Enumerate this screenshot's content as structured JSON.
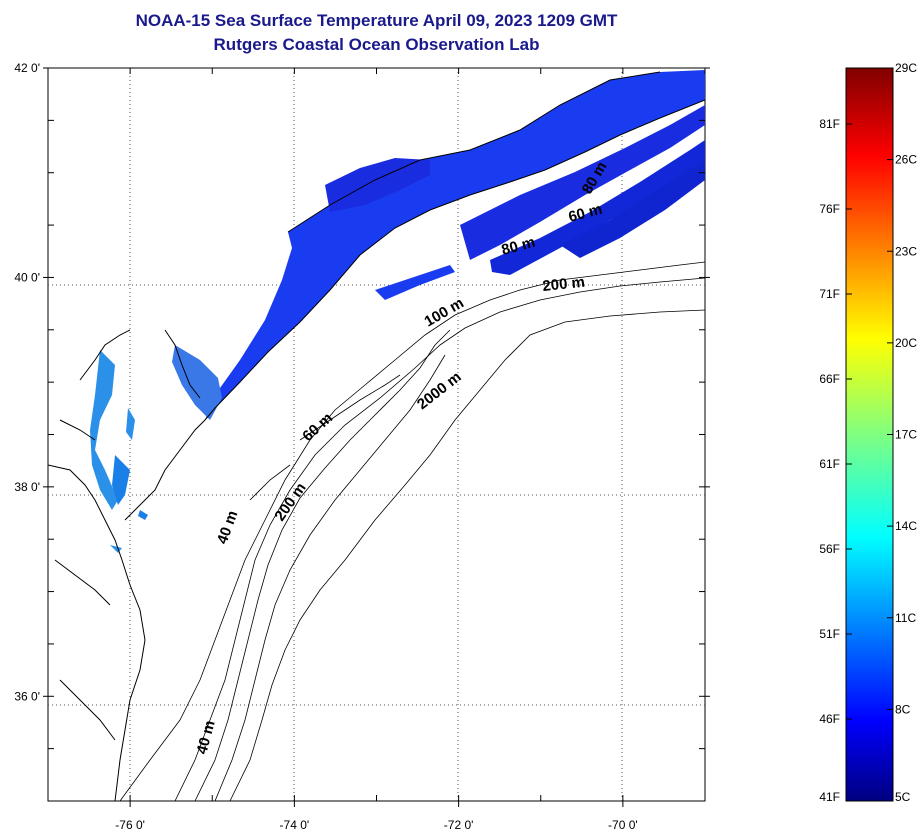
{
  "title": {
    "line1": "NOAA-15 Sea Surface Temperature April 09, 2023 1209 GMT",
    "line2": "Rutgers Coastal Ocean Observation Lab"
  },
  "map": {
    "lat_range": [
      35,
      42
    ],
    "lon_range": [
      -77,
      -69
    ],
    "y_ticks": [
      {
        "value": 42,
        "label": "42 0'"
      },
      {
        "value": 40,
        "label": "40 0'"
      },
      {
        "value": 38,
        "label": "38 0'"
      },
      {
        "value": 36,
        "label": "36 0'"
      }
    ],
    "x_ticks": [
      {
        "value": -76,
        "label": "-76 0'"
      },
      {
        "value": -74,
        "label": "-74 0'"
      },
      {
        "value": -72,
        "label": "-72 0'"
      },
      {
        "value": -70,
        "label": "-70 0'"
      }
    ],
    "isobath_labels": [
      "200 m",
      "100 m",
      "2000 m",
      "60 m",
      "200 m",
      "40 m",
      "40 m",
      "80 m",
      "60 m",
      "80 m"
    ]
  },
  "colorbar": {
    "celsius_labels": [
      "29C",
      "26C",
      "23C",
      "20C",
      "17C",
      "14C",
      "11C",
      "8C",
      "5C"
    ],
    "fahrenheit_labels": [
      "81F",
      "76F",
      "71F",
      "66F",
      "61F",
      "56F",
      "51F",
      "46F",
      "41F"
    ],
    "colors": [
      "#800000",
      "#ff0000",
      "#ff8000",
      "#ffff00",
      "#80ff80",
      "#00ffff",
      "#0080ff",
      "#0000ff",
      "#000080"
    ]
  }
}
